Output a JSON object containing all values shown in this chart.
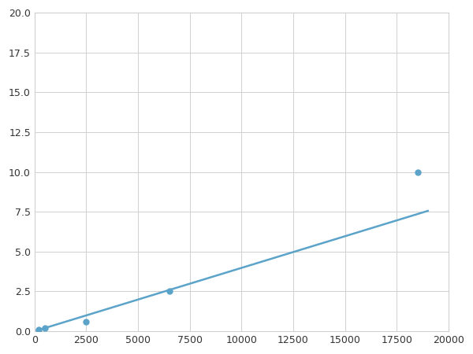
{
  "x_data": [
    200,
    500,
    2500,
    6500,
    18500
  ],
  "y_data": [
    0.1,
    0.2,
    0.6,
    2.5,
    10.0
  ],
  "line_color": "#5ba3c9",
  "marker_color": "#5ba3c9",
  "marker_size": 5,
  "line_width": 1.8,
  "xlim": [
    0,
    20000
  ],
  "ylim": [
    0,
    20.0
  ],
  "xticks": [
    0,
    2500,
    5000,
    7500,
    10000,
    12500,
    15000,
    17500,
    20000
  ],
  "yticks": [
    0.0,
    2.5,
    5.0,
    7.5,
    10.0,
    12.5,
    15.0,
    17.5,
    20.0
  ],
  "grid_color": "#d0d0d0",
  "background_color": "#ffffff",
  "figure_bg": "#ffffff"
}
